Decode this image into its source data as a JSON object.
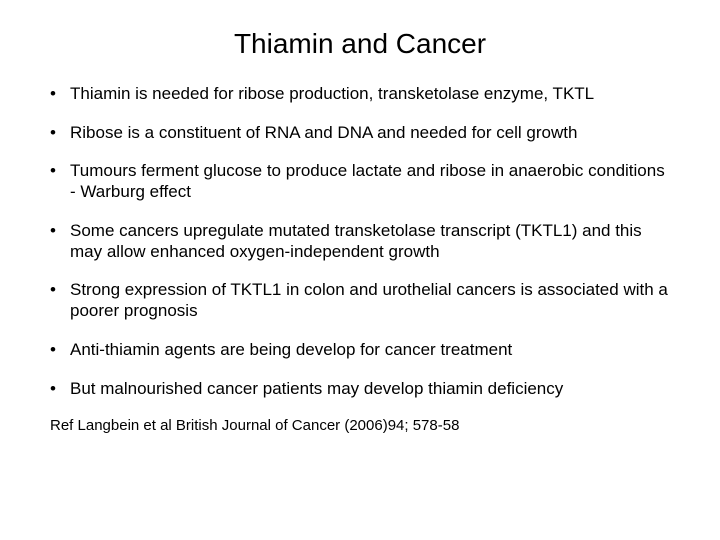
{
  "title": "Thiamin and Cancer",
  "bullets": [
    "Thiamin is needed for ribose production, transketolase enzyme, TKTL",
    "Ribose is a constituent of RNA and DNA and needed for cell growth",
    "Tumours ferment glucose to produce lactate and ribose in anaerobic conditions - Warburg effect",
    "Some cancers upregulate mutated transketolase transcript (TKTL1) and this may allow enhanced oxygen-independent growth",
    "Strong expression of TKTL1 in colon and urothelial cancers is associated with a poorer prognosis",
    "Anti-thiamin agents are being develop for cancer treatment",
    "But malnourished cancer patients may develop thiamin deficiency"
  ],
  "reference": "Ref Langbein et al British Journal of Cancer (2006)94; 578-58",
  "style": {
    "background_color": "#ffffff",
    "text_color": "#000000",
    "title_fontsize": 28,
    "body_fontsize": 17,
    "reference_fontsize": 15,
    "font_family": "Arial"
  }
}
